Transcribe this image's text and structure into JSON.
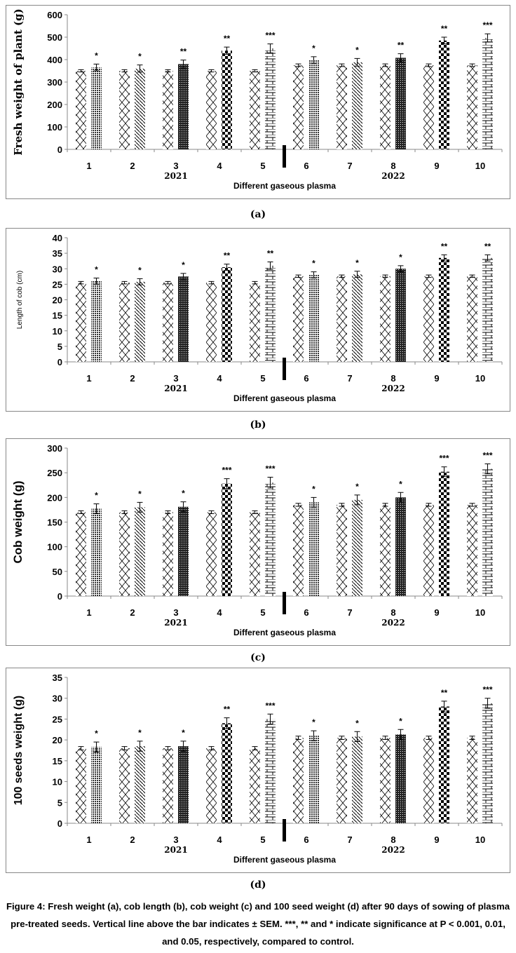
{
  "chart_data": [
    {
      "type": "bar",
      "panel_label": "(a)",
      "ylabel": "Fresh weight of plant (g)",
      "xlabel": "Different gaseous plasma",
      "categories": [
        "1",
        "2",
        "3",
        "4",
        "5",
        "6",
        "7",
        "8",
        "9",
        "10"
      ],
      "year_labels": [
        "2021",
        "2022"
      ],
      "ylim": [
        0,
        600
      ],
      "yticks": [
        0,
        100,
        200,
        300,
        400,
        500,
        600
      ],
      "series": [
        {
          "name": "Control",
          "values": [
            350,
            350,
            350,
            350,
            350,
            375,
            375,
            375,
            375,
            375
          ],
          "sem": [
            5,
            5,
            5,
            5,
            5,
            6,
            6,
            6,
            6,
            6
          ]
        },
        {
          "name": "Plasma treated",
          "values": [
            365,
            360,
            380,
            440,
            450,
            398,
            388,
            408,
            485,
            497
          ],
          "sem": [
            15,
            16,
            18,
            16,
            20,
            15,
            17,
            18,
            15,
            18
          ]
        }
      ],
      "significance": [
        "*",
        "*",
        "**",
        "**",
        "***",
        "*",
        "*",
        "**",
        "**",
        "***"
      ]
    },
    {
      "type": "bar",
      "panel_label": "(b)",
      "ylabel": "Length of cob (cm)",
      "xlabel": "Different gaseous plasma",
      "categories": [
        "1",
        "2",
        "3",
        "4",
        "5",
        "6",
        "7",
        "8",
        "9",
        "10"
      ],
      "year_labels": [
        "2021",
        "2022"
      ],
      "ylim": [
        0,
        40
      ],
      "yticks": [
        0,
        5,
        10,
        15,
        20,
        25,
        30,
        35,
        40
      ],
      "series": [
        {
          "name": "Control",
          "values": [
            25.5,
            25.5,
            25.5,
            25.5,
            25.5,
            27.6,
            27.6,
            27.6,
            27.6,
            27.6
          ],
          "sem": [
            0.4,
            0.4,
            0.4,
            0.4,
            0.4,
            0.4,
            0.4,
            0.4,
            0.4,
            0.4
          ]
        },
        {
          "name": "Plasma treated",
          "values": [
            26,
            25.8,
            27.5,
            30.5,
            31,
            28,
            28.2,
            30,
            33.5,
            33.5
          ],
          "sem": [
            1,
            1,
            1,
            1,
            1.2,
            1,
            1,
            1,
            1,
            1
          ]
        }
      ],
      "significance": [
        "*",
        "*",
        "*",
        "**",
        "**",
        "*",
        "*",
        "*",
        "**",
        "**"
      ]
    },
    {
      "type": "bar",
      "panel_label": "(c)",
      "ylabel": "Cob weight (g)",
      "xlabel": "Different gaseous plasma",
      "categories": [
        "1",
        "2",
        "3",
        "4",
        "5",
        "6",
        "7",
        "8",
        "9",
        "10"
      ],
      "year_labels": [
        "2021",
        "2022"
      ],
      "ylim": [
        0,
        300
      ],
      "yticks": [
        0,
        50,
        100,
        150,
        200,
        250,
        300
      ],
      "series": [
        {
          "name": "Control",
          "values": [
            170,
            170,
            170,
            170,
            170,
            185,
            185,
            185,
            185,
            185
          ],
          "sem": [
            3,
            3,
            3,
            3,
            3,
            3,
            3,
            3,
            3,
            3
          ]
        },
        {
          "name": "Plasma treated",
          "values": [
            177,
            180,
            181,
            228,
            230,
            190,
            195,
            200,
            252,
            258
          ],
          "sem": [
            10,
            10,
            10,
            10,
            11,
            10,
            10,
            10,
            10,
            10
          ]
        }
      ],
      "significance": [
        "*",
        "*",
        "*",
        "***",
        "***",
        "*",
        "*",
        "*",
        "***",
        "***"
      ]
    },
    {
      "type": "bar",
      "panel_label": "(d)",
      "ylabel": "100 seeds weight (g)",
      "xlabel": "Different gaseous plasma",
      "categories": [
        "1",
        "2",
        "3",
        "4",
        "5",
        "6",
        "7",
        "8",
        "9",
        "10"
      ],
      "year_labels": [
        "2021",
        "2022"
      ],
      "ylim": [
        0,
        35
      ],
      "yticks": [
        0,
        5,
        10,
        15,
        20,
        25,
        30,
        35
      ],
      "series": [
        {
          "name": "Control",
          "values": [
            18,
            18,
            18,
            18,
            18,
            20.5,
            20.5,
            20.5,
            20.5,
            20.5
          ],
          "sem": [
            0.4,
            0.4,
            0.4,
            0.4,
            0.4,
            0.4,
            0.4,
            0.4,
            0.4,
            0.4
          ]
        },
        {
          "name": "Plasma treated",
          "values": [
            18.3,
            18.5,
            18.5,
            24,
            25,
            21,
            20.8,
            21.3,
            28,
            28.8
          ],
          "sem": [
            1.2,
            1.2,
            1.2,
            1.3,
            1.2,
            1.2,
            1.2,
            1.2,
            1.3,
            1.2
          ]
        }
      ],
      "significance": [
        "*",
        "*",
        "*",
        "**",
        "***",
        "*",
        "*",
        "*",
        "**",
        "***"
      ]
    }
  ],
  "caption": "Figure 4: Fresh weight (a), cob length (b), cob weight (c) and 100 seed weight (d) after 90 days of sowing of plasma pre-treated seeds. Vertical line above the bar indicates ± SEM. ***, ** and * indicate significance at P < 0.001, 0.01, and 0.05, respectively, compared to control."
}
